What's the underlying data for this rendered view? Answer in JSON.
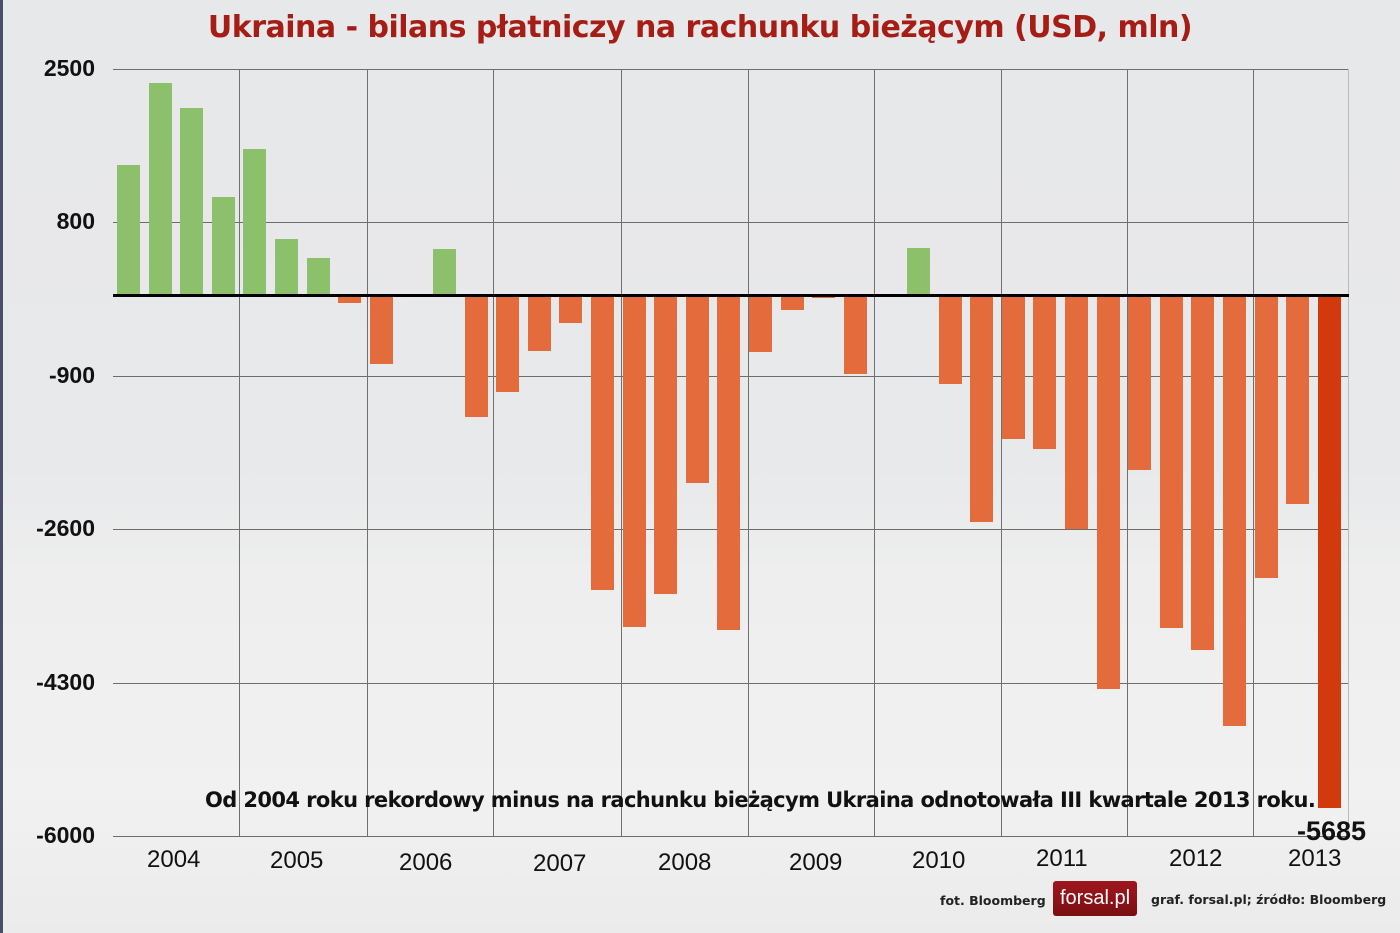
{
  "chart_data": {
    "type": "bar",
    "title": "Ukraina - bilans płatniczy na rachunku bieżącym (USD, mln)",
    "xlabel": "",
    "ylabel": "USD, mln",
    "ylim": [
      -6000,
      2500
    ],
    "yticks": [
      2500,
      800,
      -900,
      -2600,
      -4300,
      -6000
    ],
    "grid": true,
    "frequency": "quarterly",
    "year_labels": [
      "2004",
      "2005",
      "2006",
      "2007",
      "2008",
      "2009",
      "2010",
      "2011",
      "2012",
      "2013"
    ],
    "categories": [
      "2004 Q1",
      "2004 Q2",
      "2004 Q3",
      "2004 Q4",
      "2005 Q1",
      "2005 Q2",
      "2005 Q3",
      "2005 Q4",
      "2006 Q1",
      "2006 Q2",
      "2006 Q3",
      "2006 Q4",
      "2007 Q1",
      "2007 Q2",
      "2007 Q3",
      "2007 Q4",
      "2008 Q1",
      "2008 Q2",
      "2008 Q3",
      "2008 Q4",
      "2009 Q1",
      "2009 Q2",
      "2009 Q3",
      "2009 Q4",
      "2010 Q1",
      "2010 Q2",
      "2010 Q3",
      "2010 Q4",
      "2011 Q1",
      "2011 Q2",
      "2011 Q3",
      "2011 Q4",
      "2012 Q1",
      "2012 Q2",
      "2012 Q3",
      "2012 Q4",
      "2013 Q1",
      "2013 Q2",
      "2013 Q3"
    ],
    "values": [
      1440,
      2340,
      2070,
      1080,
      1610,
      620,
      410,
      -90,
      -770,
      0,
      510,
      -1360,
      -1080,
      -620,
      -310,
      -3270,
      -3680,
      -3320,
      -2090,
      -3720,
      -640,
      -170,
      -40,
      -880,
      -30,
      520,
      -990,
      -2520,
      -1600,
      -1710,
      -2600,
      -4370,
      -1940,
      -3690,
      -3940,
      -4780,
      -3140,
      -2320,
      -5685
    ],
    "annotations": [
      {
        "text": "Od 2004 roku rekordowy minus na rachunku bieżącym Ukraina odnotowała III kwartale 2013 roku."
      },
      {
        "text": "-5685",
        "target": "2013 Q3"
      }
    ],
    "colors": {
      "positive": "#8cc06a",
      "negative": "#e46b3b",
      "highlight": "#d23a0d"
    }
  },
  "header": {
    "title": "Ukraina - bilans płatniczy na rachunku bieżącym (USD, mln)"
  },
  "note": "Od 2004 roku rekordowy minus na rachunku bieżącym Ukraina odnotowała III kwartale 2013 roku.",
  "last_value_label": "-5685",
  "footer": {
    "photo_credit": "fot. Bloomberg",
    "logo": "forsal.pl",
    "source": "graf. forsal.pl;  źródło: Bloomberg"
  }
}
